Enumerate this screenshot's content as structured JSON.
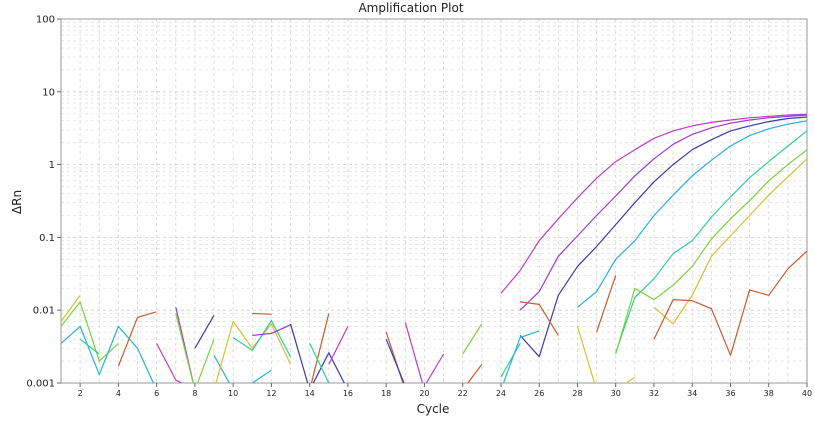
{
  "chart_data": {
    "type": "line",
    "title": "Amplification Plot",
    "xlabel": "Cycle",
    "ylabel": "ΔRn",
    "xlim": [
      1,
      40
    ],
    "ylim": [
      0.001,
      100
    ],
    "yscale": "log",
    "grid": true,
    "legend": "none",
    "x_ticks": [
      "2",
      "4",
      "6",
      "8",
      "10",
      "12",
      "14",
      "16",
      "18",
      "20",
      "22",
      "24",
      "26",
      "28",
      "30",
      "32",
      "34",
      "36",
      "38",
      "40"
    ],
    "y_ticks": [
      "0.001",
      "0.01",
      "0.1",
      "1",
      "10",
      "100"
    ],
    "series": [
      {
        "color": "#c23bc2",
        "x": [
          24,
          25,
          26,
          27,
          28,
          29,
          30,
          31,
          32,
          33,
          34,
          35,
          36,
          37,
          38,
          39,
          40
        ],
        "y": [
          0.017,
          0.035,
          0.09,
          0.18,
          0.35,
          0.65,
          1.1,
          1.6,
          2.3,
          2.9,
          3.4,
          3.8,
          4.1,
          4.4,
          4.6,
          4.8,
          4.9
        ]
      },
      {
        "color": "#9a3ad0",
        "x": [
          25,
          26,
          27,
          28,
          29,
          30,
          31,
          32,
          33,
          34,
          35,
          36,
          37,
          38,
          39,
          40
        ],
        "y": [
          0.01,
          0.018,
          0.055,
          0.105,
          0.2,
          0.37,
          0.7,
          1.2,
          1.9,
          2.6,
          3.2,
          3.7,
          4.1,
          4.4,
          4.6,
          4.8
        ]
      },
      {
        "color": "#3a3ab0",
        "x": [
          25,
          26,
          27,
          28,
          29,
          30,
          31,
          32,
          33,
          34,
          35,
          36,
          37,
          38,
          39,
          40
        ],
        "y": [
          0.0045,
          0.0023,
          0.016,
          0.04,
          0.075,
          0.15,
          0.3,
          0.58,
          1.0,
          1.6,
          2.2,
          2.9,
          3.4,
          3.9,
          4.3,
          4.5
        ]
      },
      {
        "color": "#2ab0d8",
        "x": [
          28,
          29,
          30,
          31,
          32,
          33,
          34,
          35,
          36,
          37,
          38,
          39,
          40
        ],
        "y": [
          0.011,
          0.018,
          0.05,
          0.09,
          0.2,
          0.38,
          0.7,
          1.15,
          1.8,
          2.5,
          3.1,
          3.6,
          4.0
        ]
      },
      {
        "color": "#2ed095",
        "x": [
          30,
          31,
          32,
          33,
          34,
          35,
          36,
          37,
          38,
          39,
          40
        ],
        "y": [
          0.0026,
          0.015,
          0.027,
          0.06,
          0.09,
          0.19,
          0.36,
          0.66,
          1.1,
          1.8,
          2.9
        ]
      },
      {
        "color": "#7fd040",
        "x": [
          30,
          31,
          32,
          33,
          34,
          35,
          36,
          37,
          38,
          39,
          40
        ],
        "y": [
          0.0025,
          0.02,
          0.014,
          0.022,
          0.04,
          0.095,
          0.18,
          0.32,
          0.6,
          1.0,
          1.6
        ]
      },
      {
        "color": "#d8c030",
        "x": [
          32,
          33,
          34,
          35,
          36,
          37,
          38,
          39,
          40
        ],
        "y": [
          0.011,
          0.0065,
          0.016,
          0.055,
          0.105,
          0.2,
          0.38,
          0.68,
          1.2
        ]
      },
      {
        "color": "#c85a30",
        "x": [
          32,
          33,
          34,
          35,
          36,
          37,
          38,
          39,
          40
        ],
        "y": [
          0.004,
          0.014,
          0.0135,
          0.0105,
          0.0024,
          0.019,
          0.016,
          0.037,
          0.065
        ]
      },
      {
        "color": "#c85a30",
        "x": [
          4,
          5,
          6
        ],
        "y": [
          0.0017,
          0.008,
          0.0095
        ]
      },
      {
        "color": "#c85a30",
        "x": [
          11,
          12
        ],
        "y": [
          0.009,
          0.0088
        ]
      },
      {
        "color": "#c85a30",
        "x": [
          14,
          15
        ],
        "y": [
          0.0008,
          0.009
        ]
      },
      {
        "color": "#c85a30",
        "x": [
          25,
          26,
          27
        ],
        "y": [
          0.013,
          0.012,
          0.0045
        ]
      },
      {
        "color": "#c85a30",
        "x": [
          29,
          30
        ],
        "y": [
          0.005,
          0.03
        ]
      },
      {
        "color": "#c85a30",
        "x": [
          18,
          19
        ],
        "y": [
          0.005,
          0.0008
        ]
      },
      {
        "color": "#7fd040",
        "x": [
          1,
          2,
          3,
          4
        ],
        "y": [
          0.006,
          0.013,
          0.002,
          0.0035
        ]
      },
      {
        "color": "#d8c030",
        "x": [
          1,
          2
        ],
        "y": [
          0.007,
          0.016
        ]
      },
      {
        "color": "#2ab0d8",
        "x": [
          1,
          2,
          3,
          4,
          5,
          6
        ],
        "y": [
          0.0035,
          0.006,
          0.0013,
          0.006,
          0.003,
          0.0008
        ]
      },
      {
        "color": "#2ed095",
        "x": [
          2,
          3
        ],
        "y": [
          0.004,
          0.0025
        ]
      },
      {
        "color": "#c23bc2",
        "x": [
          6,
          7,
          8
        ],
        "y": [
          0.0035,
          0.0011,
          0.0008
        ]
      },
      {
        "color": "#9a3ad0",
        "x": [
          7,
          8
        ],
        "y": [
          0.011,
          0.0008
        ]
      },
      {
        "color": "#7fd040",
        "x": [
          7,
          8,
          9
        ],
        "y": [
          0.009,
          0.0008,
          0.004
        ]
      },
      {
        "color": "#3a3ab0",
        "x": [
          8,
          9
        ],
        "y": [
          0.003,
          0.0085
        ]
      },
      {
        "color": "#2ab0d8",
        "x": [
          9,
          10
        ],
        "y": [
          0.0024,
          0.0008
        ]
      },
      {
        "color": "#d8c030",
        "x": [
          9,
          10,
          11,
          12,
          13
        ],
        "y": [
          0.0008,
          0.007,
          0.003,
          0.0065,
          0.0018
        ]
      },
      {
        "color": "#2ed095",
        "x": [
          10,
          11,
          12,
          13
        ],
        "y": [
          0.0042,
          0.0028,
          0.0072,
          0.0023
        ]
      },
      {
        "color": "#9a3ad0",
        "x": [
          11,
          12,
          13
        ],
        "y": [
          0.0045,
          0.0048,
          0.0063
        ]
      },
      {
        "color": "#2ab0d8",
        "x": [
          10,
          11,
          12
        ],
        "y": [
          0.0009,
          0.001,
          0.0015
        ]
      },
      {
        "color": "#3a3ab0",
        "x": [
          13,
          14,
          15,
          16
        ],
        "y": [
          0.0065,
          0.0008,
          0.0026,
          0.0008
        ]
      },
      {
        "color": "#c23bc2",
        "x": [
          15,
          16
        ],
        "y": [
          0.0018,
          0.006
        ]
      },
      {
        "color": "#2ed095",
        "x": [
          14,
          15
        ],
        "y": [
          0.0035,
          0.001
        ]
      },
      {
        "color": "#3a3ab0",
        "x": [
          18,
          19
        ],
        "y": [
          0.004,
          0.0009
        ]
      },
      {
        "color": "#c23bc2",
        "x": [
          19,
          20
        ],
        "y": [
          0.0068,
          0.0008
        ]
      },
      {
        "color": "#c23bc2",
        "x": [
          20,
          21
        ],
        "y": [
          0.0009,
          0.0025
        ]
      },
      {
        "color": "#c85a30",
        "x": [
          22,
          23
        ],
        "y": [
          0.0008,
          0.0018
        ]
      },
      {
        "color": "#7fd040",
        "x": [
          22,
          23
        ],
        "y": [
          0.0025,
          0.0065
        ]
      },
      {
        "color": "#2ed095",
        "x": [
          24,
          25
        ],
        "y": [
          0.0012,
          0.0035
        ]
      },
      {
        "color": "#2ab0d8",
        "x": [
          24,
          25,
          26
        ],
        "y": [
          0.0008,
          0.0042,
          0.0052
        ]
      },
      {
        "color": "#d8c030",
        "x": [
          28,
          29
        ],
        "y": [
          0.006,
          0.0008
        ]
      },
      {
        "color": "#d8c030",
        "x": [
          30,
          31
        ],
        "y": [
          0.0008,
          0.0012
        ]
      }
    ]
  }
}
